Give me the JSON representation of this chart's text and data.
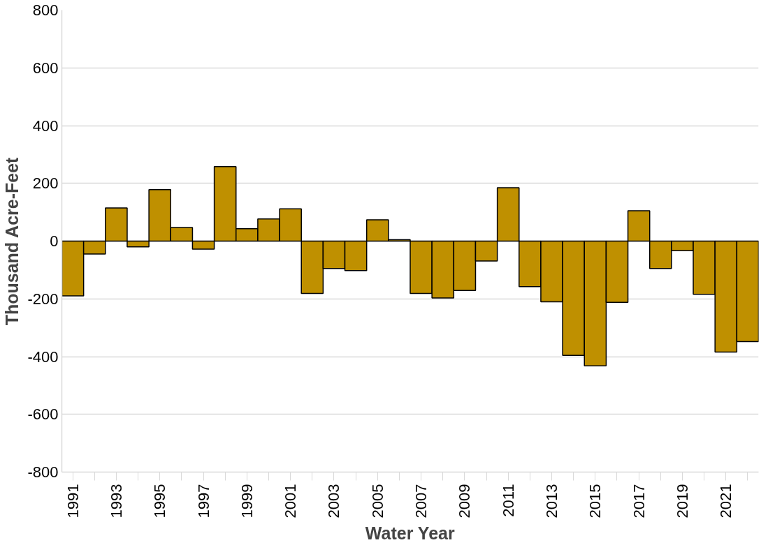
{
  "chart_data": {
    "type": "bar",
    "xlabel": "Water Year",
    "ylabel": "Thousand Acre-Feet",
    "categories": [
      "1991",
      null,
      "1993",
      null,
      "1995",
      null,
      "1997",
      null,
      "1999",
      null,
      "2001",
      null,
      "2003",
      null,
      "2005",
      null,
      "2007",
      null,
      "2009",
      null,
      "2011",
      null,
      "2013",
      null,
      "2015",
      null,
      "2017",
      null,
      "2019",
      null,
      "2021",
      null
    ],
    "values": [
      -190,
      -45,
      115,
      -20,
      178,
      47,
      -28,
      258,
      43,
      77,
      112,
      -181,
      -95,
      -102,
      74,
      5,
      -181,
      -197,
      -171,
      -69,
      185,
      -158,
      -210,
      -396,
      -432,
      -212,
      105,
      -95,
      -33,
      -184,
      -384,
      -348
    ],
    "color": "#bf9000",
    "ylim": [
      -800,
      800
    ],
    "yticks": [
      -800,
      -600,
      -400,
      -200,
      0,
      200,
      400,
      600,
      800
    ],
    "grid": "y"
  }
}
